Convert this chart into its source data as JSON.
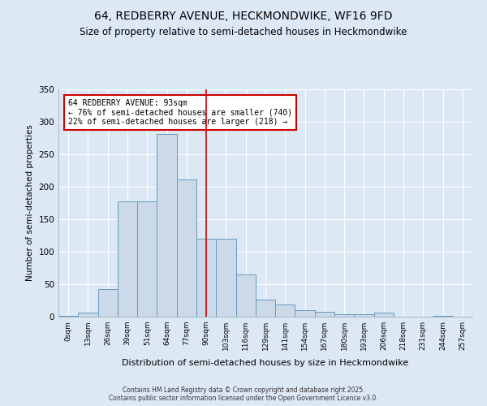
{
  "title1": "64, REDBERRY AVENUE, HECKMONDWIKE, WF16 9FD",
  "title2": "Size of property relative to semi-detached houses in Heckmondwike",
  "xlabel": "Distribution of semi-detached houses by size in Heckmondwike",
  "ylabel": "Number of semi-detached properties",
  "bar_labels": [
    "0sqm",
    "13sqm",
    "26sqm",
    "39sqm",
    "51sqm",
    "64sqm",
    "77sqm",
    "90sqm",
    "103sqm",
    "116sqm",
    "129sqm",
    "141sqm",
    "154sqm",
    "167sqm",
    "180sqm",
    "193sqm",
    "206sqm",
    "218sqm",
    "231sqm",
    "244sqm",
    "257sqm"
  ],
  "bar_values": [
    1,
    6,
    43,
    178,
    178,
    281,
    211,
    120,
    120,
    65,
    26,
    19,
    10,
    7,
    4,
    4,
    6,
    0,
    0,
    1,
    0
  ],
  "bar_color": "#ccd9e8",
  "bar_edge_color": "#6699bb",
  "vline_x": 7.5,
  "vline_color": "#cc0000",
  "annotation_title": "64 REDBERRY AVENUE: 93sqm",
  "annotation_line1": "← 76% of semi-detached houses are smaller (740)",
  "annotation_line2": "22% of semi-detached houses are larger (218) →",
  "annotation_box_color": "#cc0000",
  "footer1": "Contains HM Land Registry data © Crown copyright and database right 2025.",
  "footer2": "Contains public sector information licensed under the Open Government Licence v3.0.",
  "ylim": [
    0,
    350
  ],
  "yticks": [
    0,
    50,
    100,
    150,
    200,
    250,
    300,
    350
  ],
  "bg_color": "#dde8f5",
  "plot_bg_color": "#dde8f5",
  "title1_fontsize": 10,
  "title2_fontsize": 8.5
}
